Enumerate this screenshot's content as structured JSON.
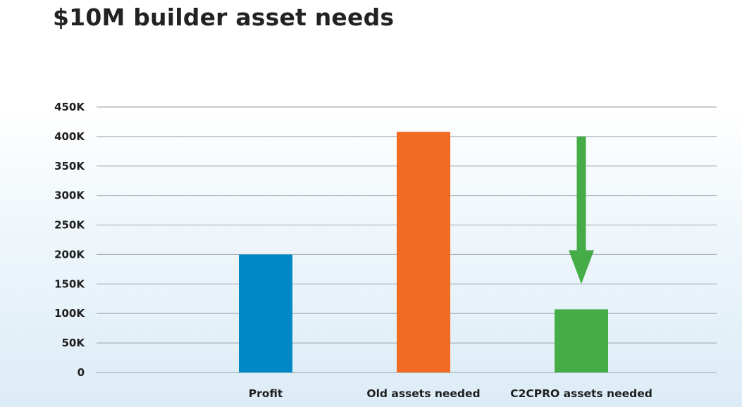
{
  "title": "$10M builder asset needs",
  "chart_data": {
    "type": "bar",
    "title": "$10M builder asset needs",
    "xlabel": "",
    "ylabel": "",
    "categories": [
      "Profit",
      "Old assets needed",
      "C2CPRO assets needed"
    ],
    "values": [
      200000,
      408000,
      107000
    ],
    "colors": [
      "#0088c6",
      "#f16b22",
      "#45ac48"
    ],
    "ylim": [
      0,
      450000
    ],
    "y_ticks": [
      0,
      50000,
      100000,
      150000,
      200000,
      250000,
      300000,
      350000,
      400000,
      450000
    ],
    "y_tick_labels": [
      "0",
      "50K",
      "100K",
      "150K",
      "200K",
      "250K",
      "300K",
      "350K",
      "400K",
      "450K"
    ],
    "grid": true,
    "legend": "none",
    "annotations": [
      {
        "type": "arrow",
        "direction": "down",
        "category": "C2CPRO assets needed",
        "from_value": 400000,
        "to_value": 150000,
        "color": "#45ac48"
      }
    ]
  }
}
